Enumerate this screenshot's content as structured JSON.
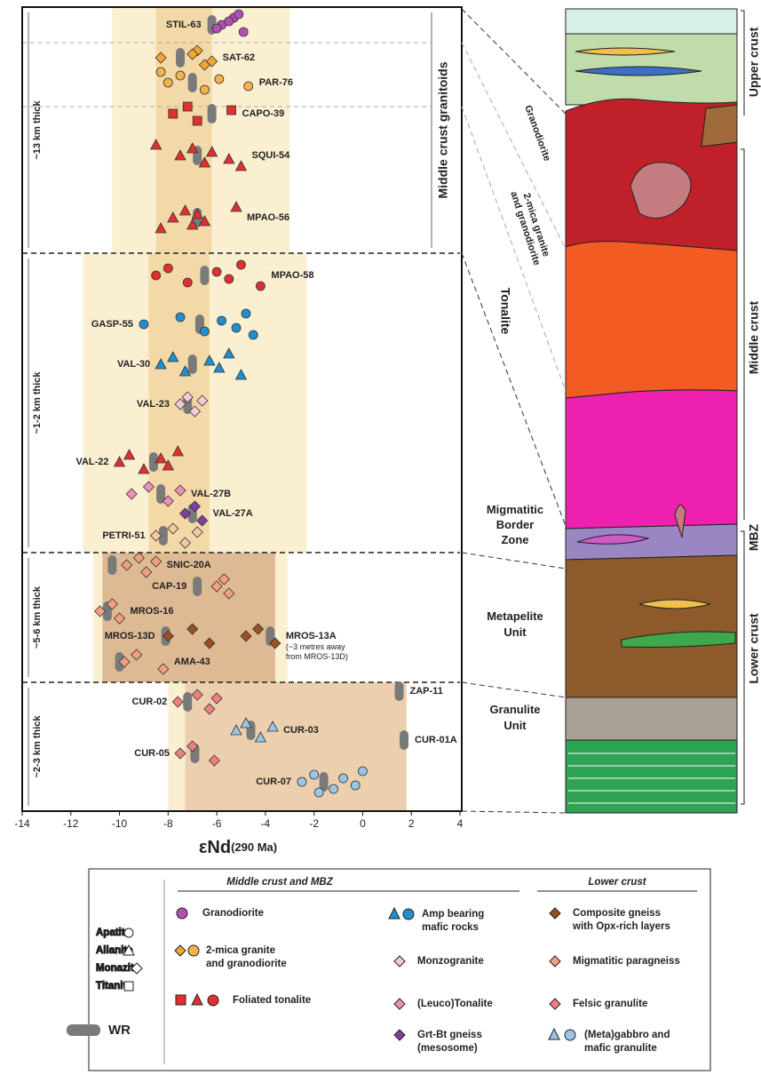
{
  "chart_data": {
    "type": "strip",
    "xlabel": "εNd",
    "xlabel_sub": "(290 Ma)",
    "xlim": [
      -14,
      4
    ],
    "xticks": [
      -14,
      -12,
      -10,
      -8,
      -6,
      -4,
      -2,
      0,
      2,
      4
    ],
    "wr_color": "#7a7a7a",
    "sections": [
      {
        "label": "~13 km thick",
        "group_label": "Middle crust granitoids",
        "band": [
          -10.3,
          -3.0
        ],
        "wr_band": [
          -8.5,
          -6.2
        ],
        "band_color": "#fbefd2",
        "wr_band_color": "#f3d9a8",
        "samples": [
          {
            "name": "STIL-63",
            "wr": -6.2,
            "marker": "circle",
            "color": "#b24fb4",
            "points": [
              -5.8,
              -5.3,
              -4.9,
              -5.5,
              -6.0,
              -5.1
            ]
          },
          {
            "name": "SAT-62",
            "wr": -7.5,
            "marker": "diamond",
            "color": "#f0a830",
            "points": [
              -8.3,
              -6.8,
              -6.5,
              -7.0,
              -6.2
            ]
          },
          {
            "name": "PAR-76",
            "wr": -7.0,
            "marker": "circle",
            "color": "#f5b24a",
            "points": [
              -8.0,
              -7.5,
              -6.5,
              -5.9,
              -4.7,
              -8.3
            ]
          },
          {
            "name": "CAPO-39",
            "wr": -6.2,
            "marker": "square",
            "color": "#e03030",
            "points": [
              -7.8,
              -7.2,
              -6.8,
              -5.4
            ]
          },
          {
            "name": "SQUI-54",
            "wr": -6.8,
            "marker": "triangle",
            "color": "#e03030",
            "points": [
              -7.5,
              -7.0,
              -6.5,
              -6.2,
              -5.5,
              -8.5,
              -5.0
            ]
          },
          {
            "name": "MPAO-56",
            "wr": -6.8,
            "marker": "triangle",
            "color": "#e03030",
            "points": [
              -7.8,
              -7.3,
              -7.0,
              -6.8,
              -6.5,
              -5.2,
              -8.3
            ]
          }
        ]
      },
      {
        "label": "~1-2 km thick",
        "band": [
          -11.5,
          -2.3
        ],
        "wr_band": [
          -8.8,
          -6.3
        ],
        "band_color": "#fbefd2",
        "wr_band_color": "#f3d9a8",
        "samples": [
          {
            "name": "MPAO-58",
            "wr": -6.5,
            "marker": "circle",
            "color": "#e03030",
            "points": [
              -8.5,
              -8.0,
              -7.2,
              -6.0,
              -5.5,
              -5.0,
              -4.2
            ]
          },
          {
            "name": "GASP-55",
            "wr": -6.7,
            "marker": "circle",
            "color": "#1f8fd0",
            "points": [
              -9.0,
              -7.5,
              -6.5,
              -5.8,
              -5.2,
              -4.8,
              -4.5
            ]
          },
          {
            "name": "VAL-30",
            "wr": -7.0,
            "marker": "triangle",
            "color": "#1f8fd0",
            "points": [
              -8.3,
              -7.8,
              -7.3,
              -6.3,
              -5.9,
              -5.5,
              -5.0
            ]
          },
          {
            "name": "VAL-23",
            "wr": -7.2,
            "marker": "diamond",
            "color": "#f6c8d4",
            "points": [
              -7.5,
              -7.2,
              -6.9,
              -6.6
            ]
          },
          {
            "name": "VAL-22",
            "wr": -8.6,
            "marker": "triangle",
            "color": "#e03030",
            "points": [
              -10.0,
              -9.6,
              -9.0,
              -8.3,
              -8.0,
              -7.6
            ]
          },
          {
            "name": "VAL-27B",
            "wr": -8.3,
            "marker": "diamond",
            "color": "#f090b8",
            "points": [
              -9.5,
              -8.8,
              -8.0,
              -7.5
            ]
          },
          {
            "name": "VAL-27A",
            "wr": -7.0,
            "marker": "diamond",
            "color": "#7d3fa0",
            "points": [
              -7.3,
              -6.9,
              -6.6
            ]
          },
          {
            "name": "PETRI-51",
            "wr": -8.2,
            "marker": "diamond",
            "color": "#f6c8a4",
            "points": [
              -8.5,
              -7.8,
              -7.3,
              -6.8
            ]
          }
        ]
      },
      {
        "label": "~5-6 km thick",
        "band": [
          -11.1,
          -3.1
        ],
        "wr_band": [
          -10.7,
          -3.6
        ],
        "band_color": "#fbefd2",
        "wr_band_color": "#ddb994",
        "samples": [
          {
            "name": "SNIC-20A",
            "wr": -10.3,
            "marker": "diamond",
            "color": "#f4a080",
            "points": [
              -9.7,
              -9.2,
              -8.9,
              -8.5
            ]
          },
          {
            "name": "CAP-19",
            "wr": -6.8,
            "marker": "diamond",
            "color": "#f4a080",
            "points": [
              -6.0,
              -5.7,
              -5.5
            ]
          },
          {
            "name": "MROS-16",
            "wr": -10.5,
            "marker": "diamond",
            "color": "#f4a080",
            "points": [
              -10.8,
              -10.3,
              -10.0
            ]
          },
          {
            "name": "MROS-13D",
            "wr": -8.1,
            "marker": "diamond",
            "color": "#9a5020",
            "points": [
              -8.0,
              -7.0,
              -6.3
            ]
          },
          {
            "name": "MROS-13A",
            "note": [
              "(~3 metres away",
              "from MROS-13D)"
            ],
            "wr": -3.8,
            "marker": "diamond",
            "color": "#9a5020",
            "points": [
              -4.8,
              -4.3,
              -3.6
            ]
          },
          {
            "name": "AMA-43",
            "wr": -10.0,
            "marker": "diamond",
            "color": "#f4a080",
            "points": [
              -9.8,
              -9.3,
              -8.2
            ]
          }
        ]
      },
      {
        "label": "~2-3 km thick",
        "band": [
          -8.0,
          1.8
        ],
        "wr_band": [
          -7.3,
          1.8
        ],
        "band_color": "#fbefd2",
        "wr_band_color": "#eccfae",
        "samples": [
          {
            "name": "CUR-02",
            "wr": -7.2,
            "marker": "diamond",
            "color": "#ee8080",
            "points": [
              -7.6,
              -6.8,
              -6.3,
              -6.0
            ]
          },
          {
            "name": "ZAP-11",
            "wr": 1.5,
            "marker": "circle",
            "color": "#9cc4e4",
            "points": []
          },
          {
            "name": "CUR-03",
            "wr": -4.6,
            "marker": "triangle",
            "color": "#9cc4e4",
            "points": [
              -5.2,
              -4.8,
              -4.2,
              -3.7
            ]
          },
          {
            "name": "CUR-01A",
            "wr": 1.7,
            "marker": "circle",
            "color": "#9cc4e4",
            "points": []
          },
          {
            "name": "CUR-05",
            "wr": -6.9,
            "marker": "diamond",
            "color": "#ee8080",
            "points": [
              -7.5,
              -7.0,
              -6.1
            ]
          },
          {
            "name": "CUR-07",
            "wr": -1.6,
            "marker": "circle",
            "color": "#9cc4e4",
            "points": [
              -2.5,
              -2.0,
              -1.2,
              -0.8,
              -0.3,
              0.0,
              -1.8
            ]
          }
        ]
      }
    ]
  },
  "diagram": {
    "layers": [
      "Granodiorite",
      [
        "2-mica granite",
        "and granodiorite"
      ],
      "Tonalite",
      [
        "Migmatitic",
        "Border",
        "Zone"
      ],
      [
        "Metapelite",
        "Unit"
      ],
      [
        "Granulite",
        "Unit"
      ]
    ],
    "levels": [
      "Upper crust",
      "Middle crust",
      "MBZ",
      "Lower crust"
    ]
  },
  "legend": {
    "minerals": [
      "Apatite",
      "Allanite",
      "Monazite",
      "Titanite"
    ],
    "wr": "WR",
    "groups": [
      "Middle crust and MBZ",
      "Lower crust"
    ],
    "items": [
      [
        "Granodiorite"
      ],
      [
        "2-mica granite",
        "and granodiorite"
      ],
      [
        "Foliated tonalite"
      ],
      [
        "Amp bearing",
        "mafic rocks"
      ],
      [
        "Monzogranite"
      ],
      [
        "(Leuco)Tonalite"
      ],
      [
        "Grt-Bt gneiss",
        "(mesosome)"
      ],
      [
        "Composite gneiss",
        "with Opx-rich layers"
      ],
      [
        "Migmatitic paragneiss"
      ],
      [
        "Felsic granulite"
      ],
      [
        "(Meta)gabbro and",
        "mafic granulite"
      ]
    ]
  }
}
